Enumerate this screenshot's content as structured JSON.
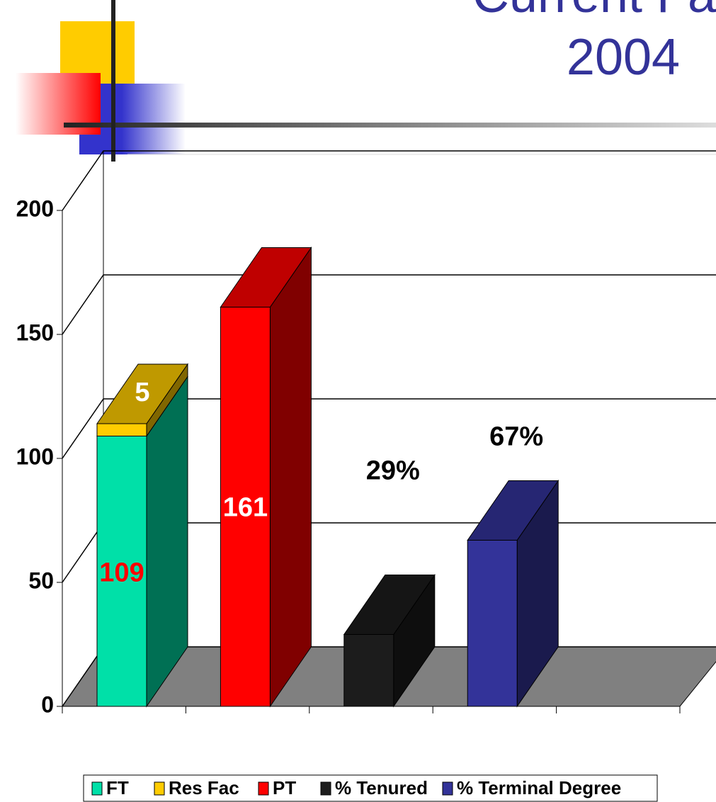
{
  "title": "Current Fa",
  "subtitle": "2004",
  "chart_data": {
    "type": "bar3d",
    "categories": [
      null,
      null,
      null,
      null,
      null
    ],
    "series": [
      {
        "name": "FT",
        "color": "#00e0a8",
        "values": [
          109,
          null,
          null,
          null,
          null
        ]
      },
      {
        "name": "Res Fac",
        "color": "#ffcc00",
        "values": [
          5,
          null,
          null,
          null,
          null
        ]
      },
      {
        "name": "PT",
        "color": "#ff0000",
        "values": [
          null,
          161,
          null,
          null,
          null
        ]
      },
      {
        "name": "% Tenured",
        "color": "#1c1c1c",
        "values": [
          null,
          null,
          29,
          null,
          null
        ],
        "value_labels": [
          null,
          null,
          "29%",
          null,
          null
        ]
      },
      {
        "name": "% Terminal Degree",
        "color": "#333399",
        "values": [
          null,
          null,
          null,
          67,
          null
        ],
        "value_labels": [
          null,
          null,
          null,
          "67%",
          null
        ]
      }
    ],
    "ylim": [
      0,
      200
    ],
    "yticks": [
      0,
      50,
      100,
      150,
      200
    ],
    "grid": true,
    "legend": "bottom"
  }
}
